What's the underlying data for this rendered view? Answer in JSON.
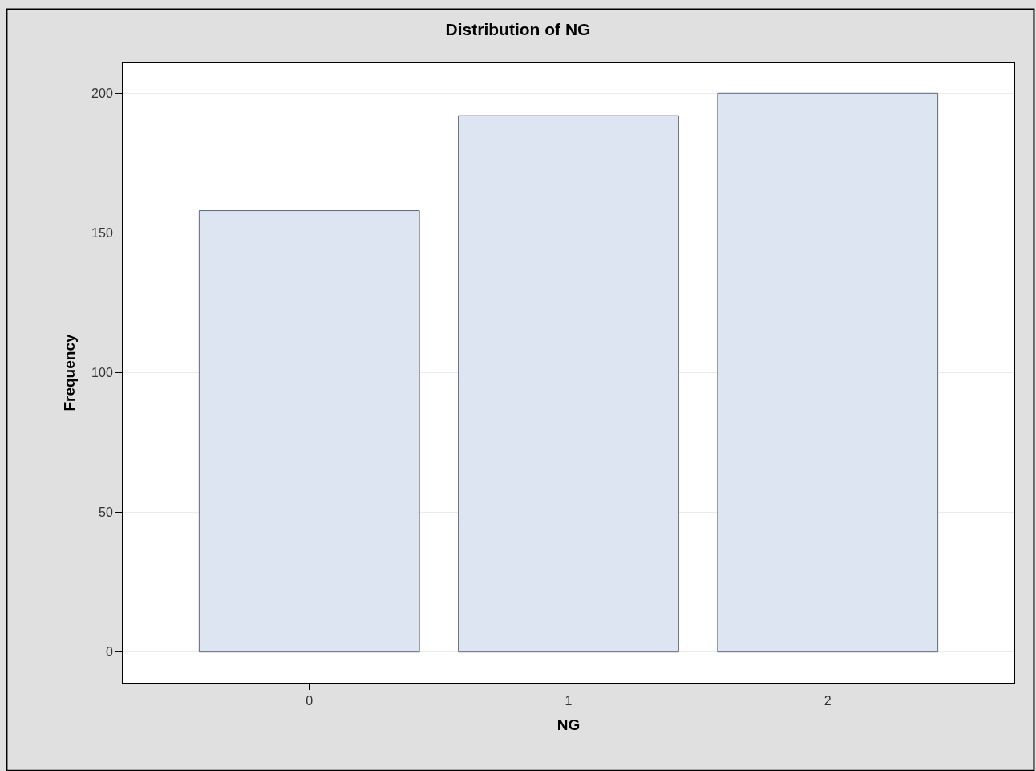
{
  "chart_data": {
    "type": "bar",
    "title": "Distribution of NG",
    "xlabel": "NG",
    "ylabel": "Frequency",
    "categories": [
      "0",
      "1",
      "2"
    ],
    "values": [
      158,
      192,
      200
    ],
    "color": "#dce5f1",
    "ylim": [
      -11,
      211
    ],
    "yticks": [
      0,
      50,
      100,
      150,
      200
    ],
    "grid": "y"
  }
}
